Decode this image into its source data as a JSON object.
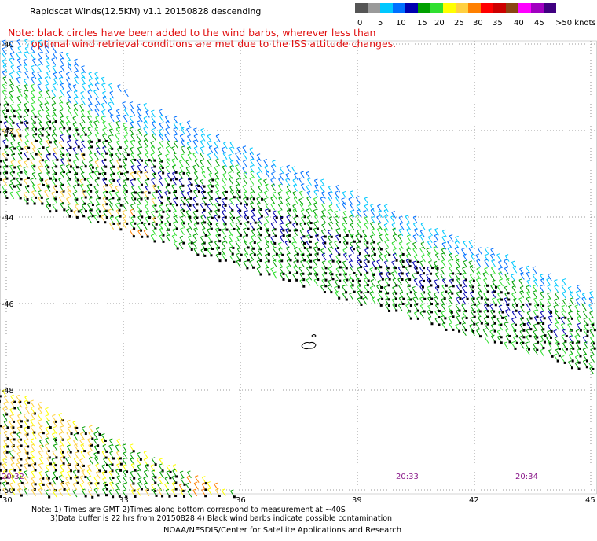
{
  "header": {
    "title": "Rapidscat Winds(12.5KM) v1.1 20150828 descending",
    "note_line1": "Note: black circles have been added to the wind barbs, wherever less than",
    "note_line2": "optimal wind retrieval conditions are met due to the ISS attitude changes."
  },
  "color_scale": {
    "labels": [
      "0",
      "5",
      "10",
      "15",
      "20",
      "25",
      "30",
      "35",
      "40",
      "45",
      ">50 knots"
    ],
    "colors": [
      "#555555",
      "#9a9a9a",
      "#00c8ff",
      "#0070ff",
      "#0000b0",
      "#00a000",
      "#30e030",
      "#ffff00",
      "#ffd040",
      "#ff8000",
      "#ff0000",
      "#cc0000",
      "#8b4513",
      "#ff00ff",
      "#a000c0",
      "#400080"
    ]
  },
  "axes": {
    "longitude_labels": [
      "30",
      "33",
      "36",
      "39",
      "42",
      "45"
    ],
    "latitude_labels": [
      "-40",
      "-42",
      "-44",
      "-46",
      "-48",
      "-50"
    ]
  },
  "times": [
    "20:32",
    "20:33",
    "20:34"
  ],
  "footer": {
    "line1": "Note: 1) Times are GMT 2)Times along bottom correspond to measurement at ~40S",
    "line2": "3)Data buffer is 22 hrs from 20150828 4) Black wind barbs indicate possible contamination",
    "credit": "NOAA/NESDIS/Center for Satellite Applications and Research"
  }
}
